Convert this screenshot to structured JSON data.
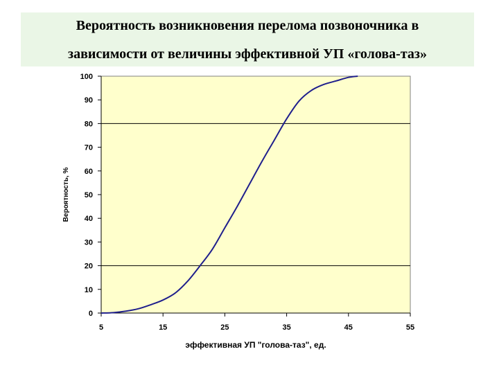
{
  "title": {
    "line1": "Вероятность возникновения перелома позвоночника в",
    "line2": "зависимости от величины эффективной УП «голова-таз»"
  },
  "chart_data": {
    "type": "line",
    "xlabel": "эффективная УП \"голова-таз\", ед.",
    "ylabel": "Вероятность, %",
    "xlim": [
      5,
      55
    ],
    "ylim": [
      0,
      100
    ],
    "x_ticks": [
      5,
      15,
      25,
      35,
      45,
      55
    ],
    "y_ticks": [
      0,
      10,
      20,
      30,
      40,
      50,
      60,
      70,
      80,
      90,
      100
    ],
    "reference_lines_y": [
      20,
      80
    ],
    "grid": false,
    "legend": "none",
    "colors": {
      "plot_background": "#ffffcc",
      "line": "#1f1f8c",
      "title_background": "#eaf6e6"
    },
    "series": [
      {
        "x": [
          5,
          7,
          9,
          11,
          13,
          15,
          17,
          19,
          21,
          23,
          25,
          27,
          29,
          31,
          33,
          35,
          37,
          39,
          41,
          43,
          45,
          46.5
        ],
        "values": [
          0,
          0.2,
          0.8,
          1.8,
          3.5,
          5.5,
          8.5,
          13.5,
          20,
          27,
          36,
          45,
          54.5,
          64,
          73,
          82,
          89.5,
          94,
          96.5,
          98,
          99.5,
          100
        ]
      }
    ]
  }
}
